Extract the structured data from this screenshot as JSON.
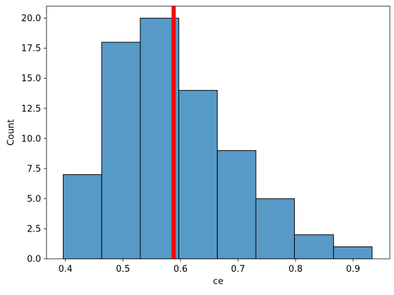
{
  "chart_data": {
    "type": "histogram",
    "x_label": "ce",
    "y_label": "Count",
    "bins": [
      0.396,
      0.463,
      0.53,
      0.597,
      0.664,
      0.731,
      0.798,
      0.866,
      0.933
    ],
    "values": [
      7,
      18,
      20,
      14,
      9,
      5,
      2,
      1
    ],
    "color": "#5799c7",
    "vline": 0.588,
    "vline_color": "#ff0000",
    "xlim": [
      0.367,
      0.964
    ],
    "xticks": [
      0.4,
      0.5,
      0.6,
      0.7,
      0.8,
      0.9
    ],
    "ylim": [
      0,
      21
    ],
    "yticks": [
      {
        "value": 0,
        "label": "0.0"
      },
      2.5,
      {
        "value": 5,
        "label": "5.0"
      },
      7.5,
      {
        "value": 10,
        "label": "10.0"
      },
      12.5,
      {
        "value": 15,
        "label": "15.0"
      },
      17.5,
      {
        "value": 20,
        "label": "20.0"
      }
    ],
    "grid": false
  }
}
